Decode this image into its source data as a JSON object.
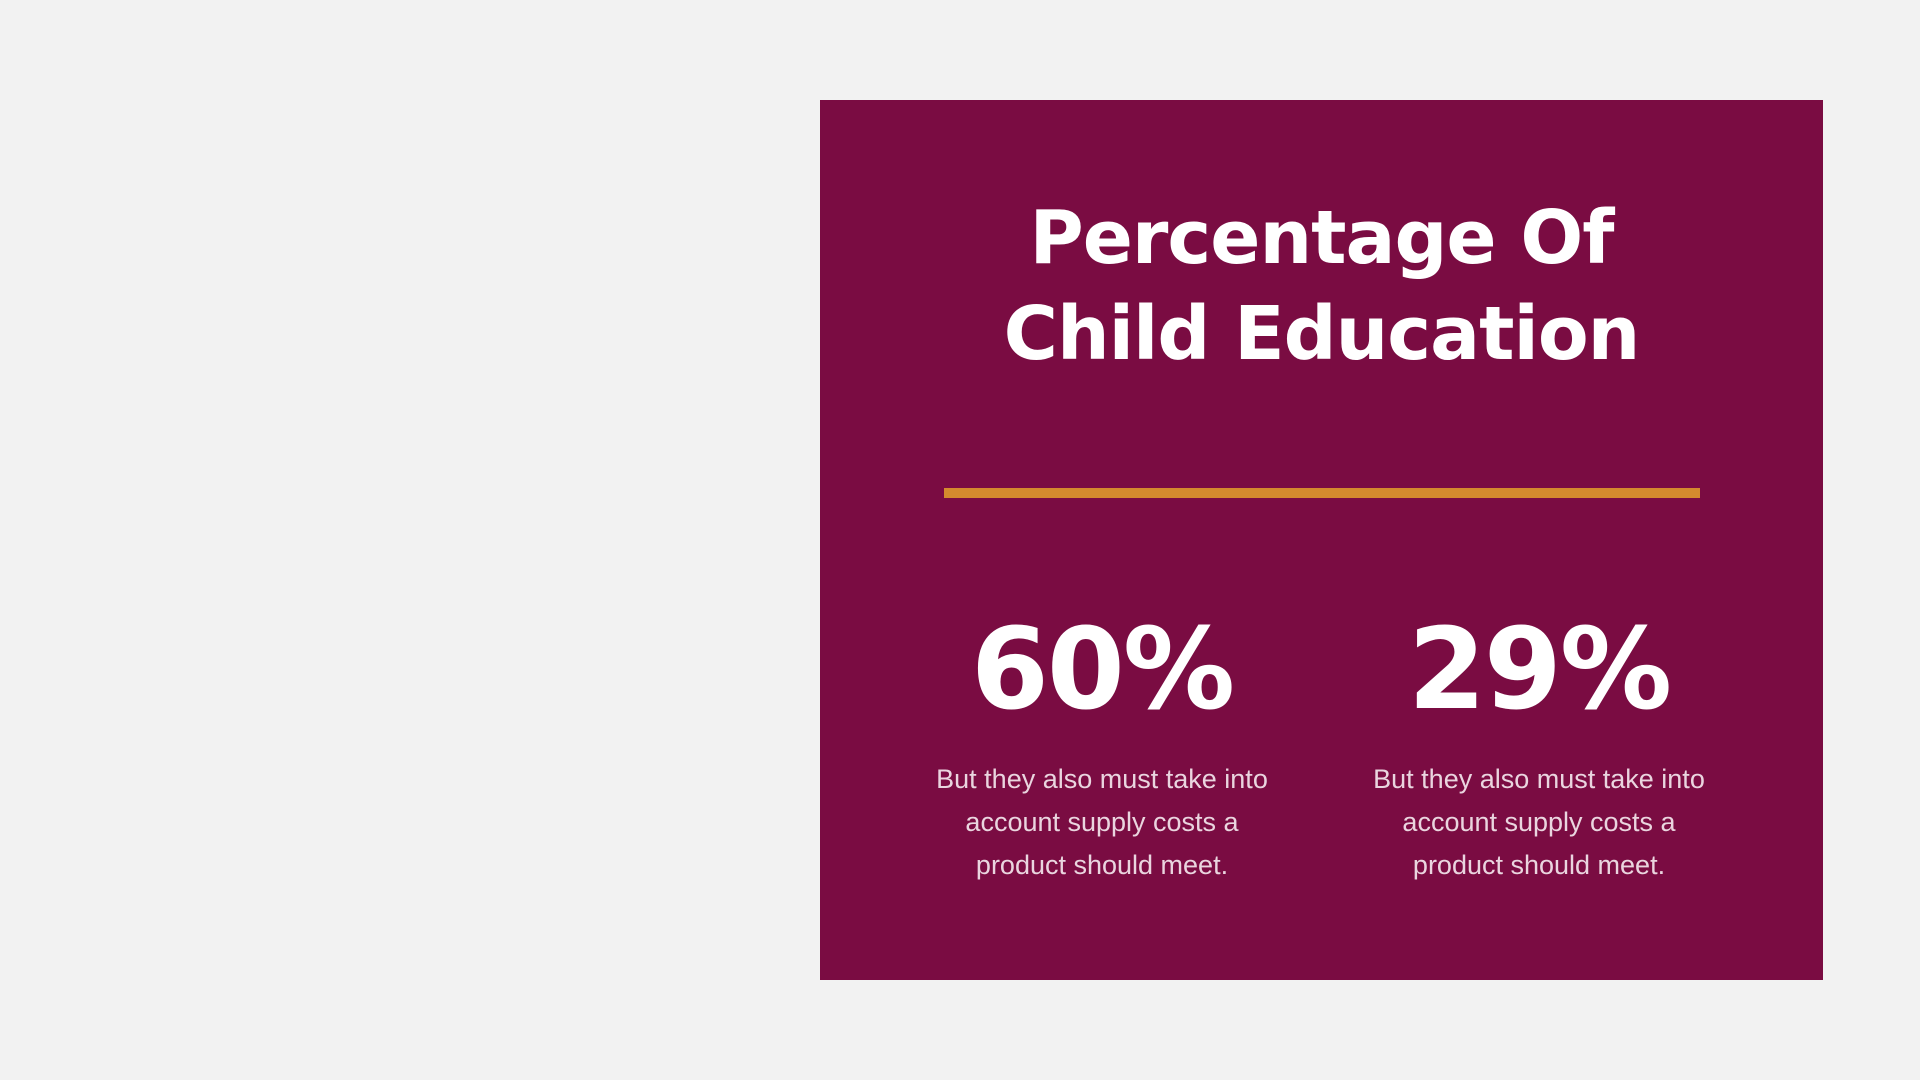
{
  "slide": {
    "title_line1": "Percentage Of",
    "title_line2": "Child Education",
    "stats": [
      {
        "value": "60%",
        "description": "But they also must take into account supply costs a product should meet."
      },
      {
        "value": "29%",
        "description": "But they also must take into account supply costs a product should meet."
      }
    ]
  },
  "colors": {
    "background": "#f2f2f2",
    "panel": "#7a0c42",
    "accent_line": "#d48a2e",
    "text": "#ffffff"
  }
}
